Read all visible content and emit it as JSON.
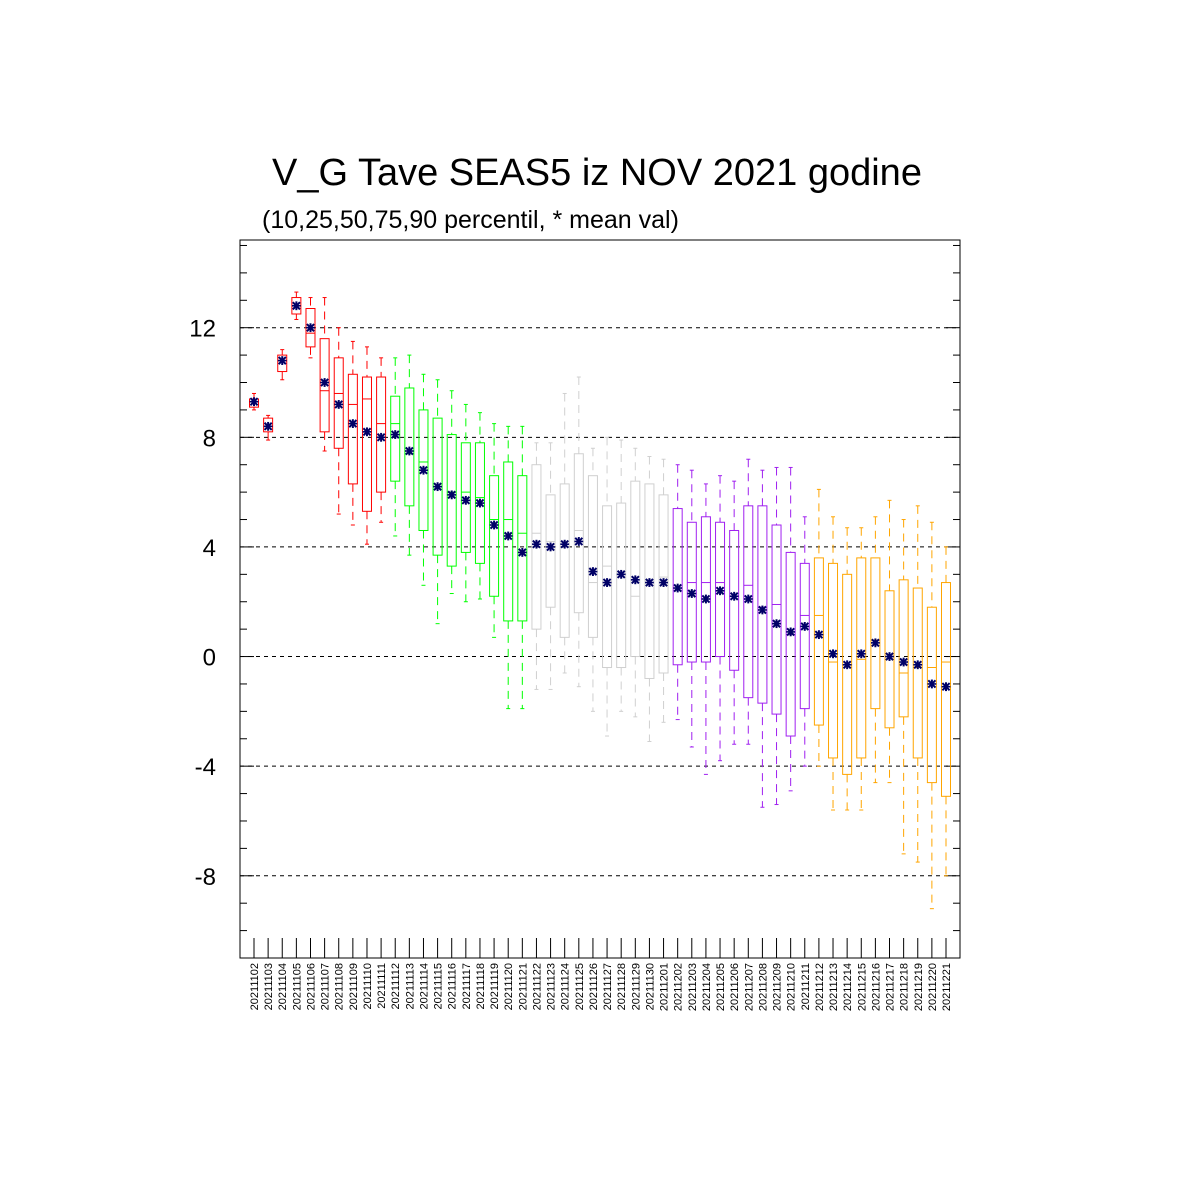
{
  "chart_data": {
    "type": "box",
    "title": "V_G Tave SEAS5 iz NOV 2021 godine",
    "subtitle": "(10,25,50,75,90 percentil, * mean val)",
    "ylim": [
      -11,
      15.2
    ],
    "yticks": [
      -8,
      -4,
      0,
      4,
      8,
      12
    ],
    "ytick_labels": [
      "-8",
      "-4",
      "0",
      "4",
      "8",
      "12"
    ],
    "grid": "horizontal dashed at major ticks",
    "mean_marker": "*",
    "colors": {
      "red": "#ff0000",
      "green": "#00ff00",
      "gray": "#d0d0d0",
      "purple": "#a020f0",
      "orange": "#ffa500",
      "mean": "#000066"
    },
    "categories": [
      "20211102",
      "20211103",
      "20211104",
      "20211105",
      "20211106",
      "20211107",
      "20211108",
      "20211109",
      "20211110",
      "20211111",
      "20211112",
      "20211113",
      "20211114",
      "20211115",
      "20211116",
      "20211117",
      "20211118",
      "20211119",
      "20211120",
      "20211121",
      "20211122",
      "20211123",
      "20211124",
      "20211125",
      "20211126",
      "20211127",
      "20211128",
      "20211129",
      "20211130",
      "20211201",
      "20211202",
      "20211203",
      "20211204",
      "20211205",
      "20211206",
      "20211207",
      "20211208",
      "20211209",
      "20211210",
      "20211211",
      "20211212",
      "20211213",
      "20211214",
      "20211215",
      "20211216",
      "20211217",
      "20211218",
      "20211219",
      "20211220",
      "20211221"
    ],
    "boxes": [
      {
        "p10": 9.0,
        "p25": 9.1,
        "p50": 9.3,
        "p75": 9.4,
        "p90": 9.6,
        "mean": 9.3,
        "color": "red"
      },
      {
        "p10": 7.9,
        "p25": 8.2,
        "p50": 8.4,
        "p75": 8.7,
        "p90": 8.8,
        "mean": 8.4,
        "color": "red"
      },
      {
        "p10": 10.1,
        "p25": 10.4,
        "p50": 10.8,
        "p75": 11.0,
        "p90": 11.2,
        "mean": 10.8,
        "color": "red"
      },
      {
        "p10": 12.3,
        "p25": 12.5,
        "p50": 12.8,
        "p75": 13.1,
        "p90": 13.3,
        "mean": 12.8,
        "color": "red"
      },
      {
        "p10": 10.9,
        "p25": 11.3,
        "p50": 11.8,
        "p75": 12.7,
        "p90": 13.1,
        "mean": 12.0,
        "color": "red"
      },
      {
        "p10": 7.5,
        "p25": 8.2,
        "p50": 9.7,
        "p75": 11.6,
        "p90": 13.1,
        "mean": 10.0,
        "color": "red"
      },
      {
        "p10": 5.2,
        "p25": 7.6,
        "p50": 9.6,
        "p75": 10.9,
        "p90": 12.0,
        "mean": 9.2,
        "color": "red"
      },
      {
        "p10": 4.8,
        "p25": 6.3,
        "p50": 9.2,
        "p75": 10.3,
        "p90": 11.5,
        "mean": 8.5,
        "color": "red"
      },
      {
        "p10": 4.1,
        "p25": 5.3,
        "p50": 9.4,
        "p75": 10.2,
        "p90": 11.3,
        "mean": 8.2,
        "color": "red"
      },
      {
        "p10": 4.9,
        "p25": 6.0,
        "p50": 8.5,
        "p75": 10.2,
        "p90": 10.9,
        "mean": 8.0,
        "color": "red"
      },
      {
        "p10": 4.4,
        "p25": 6.4,
        "p50": 8.5,
        "p75": 9.5,
        "p90": 10.9,
        "mean": 8.1,
        "color": "green"
      },
      {
        "p10": 3.7,
        "p25": 5.5,
        "p50": 7.4,
        "p75": 9.8,
        "p90": 11.0,
        "mean": 7.5,
        "color": "green"
      },
      {
        "p10": 2.6,
        "p25": 4.6,
        "p50": 7.1,
        "p75": 9.0,
        "p90": 10.3,
        "mean": 6.8,
        "color": "green"
      },
      {
        "p10": 1.2,
        "p25": 3.7,
        "p50": 6.2,
        "p75": 8.7,
        "p90": 10.1,
        "mean": 6.2,
        "color": "green"
      },
      {
        "p10": 2.3,
        "p25": 3.3,
        "p50": 6.0,
        "p75": 8.1,
        "p90": 9.7,
        "mean": 5.9,
        "color": "green"
      },
      {
        "p10": 2.0,
        "p25": 3.8,
        "p50": 6.0,
        "p75": 7.8,
        "p90": 9.2,
        "mean": 5.7,
        "color": "green"
      },
      {
        "p10": 2.1,
        "p25": 3.4,
        "p50": 5.8,
        "p75": 7.8,
        "p90": 8.9,
        "mean": 5.6,
        "color": "green"
      },
      {
        "p10": 0.7,
        "p25": 2.2,
        "p50": 5.0,
        "p75": 6.6,
        "p90": 8.5,
        "mean": 4.8,
        "color": "green"
      },
      {
        "p10": -1.9,
        "p25": 1.3,
        "p50": 5.0,
        "p75": 7.1,
        "p90": 8.4,
        "mean": 4.4,
        "color": "green"
      },
      {
        "p10": -1.9,
        "p25": 1.3,
        "p50": 4.5,
        "p75": 6.6,
        "p90": 8.4,
        "mean": 3.8,
        "color": "green"
      },
      {
        "p10": -1.2,
        "p25": 1.0,
        "p50": 4.5,
        "p75": 7.0,
        "p90": 7.8,
        "mean": 4.1,
        "color": "gray"
      },
      {
        "p10": -1.2,
        "p25": 1.8,
        "p50": 4.2,
        "p75": 5.9,
        "p90": 7.8,
        "mean": 4.0,
        "color": "gray"
      },
      {
        "p10": -0.6,
        "p25": 0.7,
        "p50": 4.2,
        "p75": 6.3,
        "p90": 9.6,
        "mean": 4.1,
        "color": "gray"
      },
      {
        "p10": -1.1,
        "p25": 1.6,
        "p50": 4.6,
        "p75": 7.4,
        "p90": 10.2,
        "mean": 4.2,
        "color": "gray"
      },
      {
        "p10": -2.0,
        "p25": 0.7,
        "p50": 2.7,
        "p75": 6.6,
        "p90": 7.6,
        "mean": 3.1,
        "color": "gray"
      },
      {
        "p10": -2.9,
        "p25": -0.4,
        "p50": 3.3,
        "p75": 5.5,
        "p90": 8.0,
        "mean": 2.7,
        "color": "gray"
      },
      {
        "p10": -2.0,
        "p25": -0.4,
        "p50": 3.0,
        "p75": 5.6,
        "p90": 7.9,
        "mean": 3.0,
        "color": "gray"
      },
      {
        "p10": -2.2,
        "p25": 0.0,
        "p50": 2.2,
        "p75": 6.4,
        "p90": 7.6,
        "mean": 2.8,
        "color": "gray"
      },
      {
        "p10": -3.1,
        "p25": -0.8,
        "p50": 2.8,
        "p75": 6.3,
        "p90": 7.3,
        "mean": 2.7,
        "color": "gray"
      },
      {
        "p10": -2.4,
        "p25": -0.6,
        "p50": 2.9,
        "p75": 5.9,
        "p90": 7.2,
        "mean": 2.7,
        "color": "gray"
      },
      {
        "p10": -2.3,
        "p25": -0.3,
        "p50": 2.5,
        "p75": 5.4,
        "p90": 7.0,
        "mean": 2.5,
        "color": "purple"
      },
      {
        "p10": -3.3,
        "p25": -0.2,
        "p50": 2.7,
        "p75": 4.9,
        "p90": 6.8,
        "mean": 2.3,
        "color": "purple"
      },
      {
        "p10": -4.3,
        "p25": -0.2,
        "p50": 2.7,
        "p75": 5.1,
        "p90": 6.3,
        "mean": 2.1,
        "color": "purple"
      },
      {
        "p10": -3.8,
        "p25": 0.0,
        "p50": 2.7,
        "p75": 4.9,
        "p90": 6.6,
        "mean": 2.4,
        "color": "purple"
      },
      {
        "p10": -3.2,
        "p25": -0.5,
        "p50": 2.2,
        "p75": 4.6,
        "p90": 6.4,
        "mean": 2.2,
        "color": "purple"
      },
      {
        "p10": -3.2,
        "p25": -1.5,
        "p50": 2.6,
        "p75": 5.5,
        "p90": 7.2,
        "mean": 2.1,
        "color": "purple"
      },
      {
        "p10": -5.5,
        "p25": -1.7,
        "p50": 1.8,
        "p75": 5.5,
        "p90": 6.8,
        "mean": 1.7,
        "color": "purple"
      },
      {
        "p10": -5.4,
        "p25": -2.1,
        "p50": 1.9,
        "p75": 4.8,
        "p90": 6.9,
        "mean": 1.2,
        "color": "purple"
      },
      {
        "p10": -4.9,
        "p25": -2.9,
        "p50": 0.8,
        "p75": 3.8,
        "p90": 6.9,
        "mean": 0.9,
        "color": "purple"
      },
      {
        "p10": -4.0,
        "p25": -1.9,
        "p50": 1.5,
        "p75": 3.4,
        "p90": 5.1,
        "mean": 1.1,
        "color": "purple"
      },
      {
        "p10": -4.0,
        "p25": -2.5,
        "p50": 1.5,
        "p75": 3.6,
        "p90": 6.1,
        "mean": 0.8,
        "color": "orange"
      },
      {
        "p10": -5.6,
        "p25": -3.7,
        "p50": -0.2,
        "p75": 3.4,
        "p90": 5.1,
        "mean": 0.1,
        "color": "orange"
      },
      {
        "p10": -5.6,
        "p25": -4.3,
        "p50": -0.3,
        "p75": 3.0,
        "p90": 4.7,
        "mean": -0.3,
        "color": "orange"
      },
      {
        "p10": -5.6,
        "p25": -3.7,
        "p50": -0.1,
        "p75": 3.6,
        "p90": 4.7,
        "mean": 0.1,
        "color": "orange"
      },
      {
        "p10": -4.6,
        "p25": -1.9,
        "p50": 0.6,
        "p75": 3.6,
        "p90": 5.1,
        "mean": 0.5,
        "color": "orange"
      },
      {
        "p10": -4.6,
        "p25": -2.6,
        "p50": 0.0,
        "p75": 2.4,
        "p90": 5.7,
        "mean": 0.0,
        "color": "orange"
      },
      {
        "p10": -7.2,
        "p25": -2.2,
        "p50": -0.6,
        "p75": 2.8,
        "p90": 5.0,
        "mean": -0.2,
        "color": "orange"
      },
      {
        "p10": -7.5,
        "p25": -3.7,
        "p50": -0.4,
        "p75": 2.5,
        "p90": 5.5,
        "mean": -0.3,
        "color": "orange"
      },
      {
        "p10": -9.2,
        "p25": -4.6,
        "p50": -0.4,
        "p75": 1.8,
        "p90": 4.9,
        "mean": -1.0,
        "color": "orange"
      },
      {
        "p10": -8.0,
        "p25": -5.1,
        "p50": -0.2,
        "p75": 2.7,
        "p90": 4.0,
        "mean": -1.1,
        "color": "orange"
      }
    ]
  }
}
